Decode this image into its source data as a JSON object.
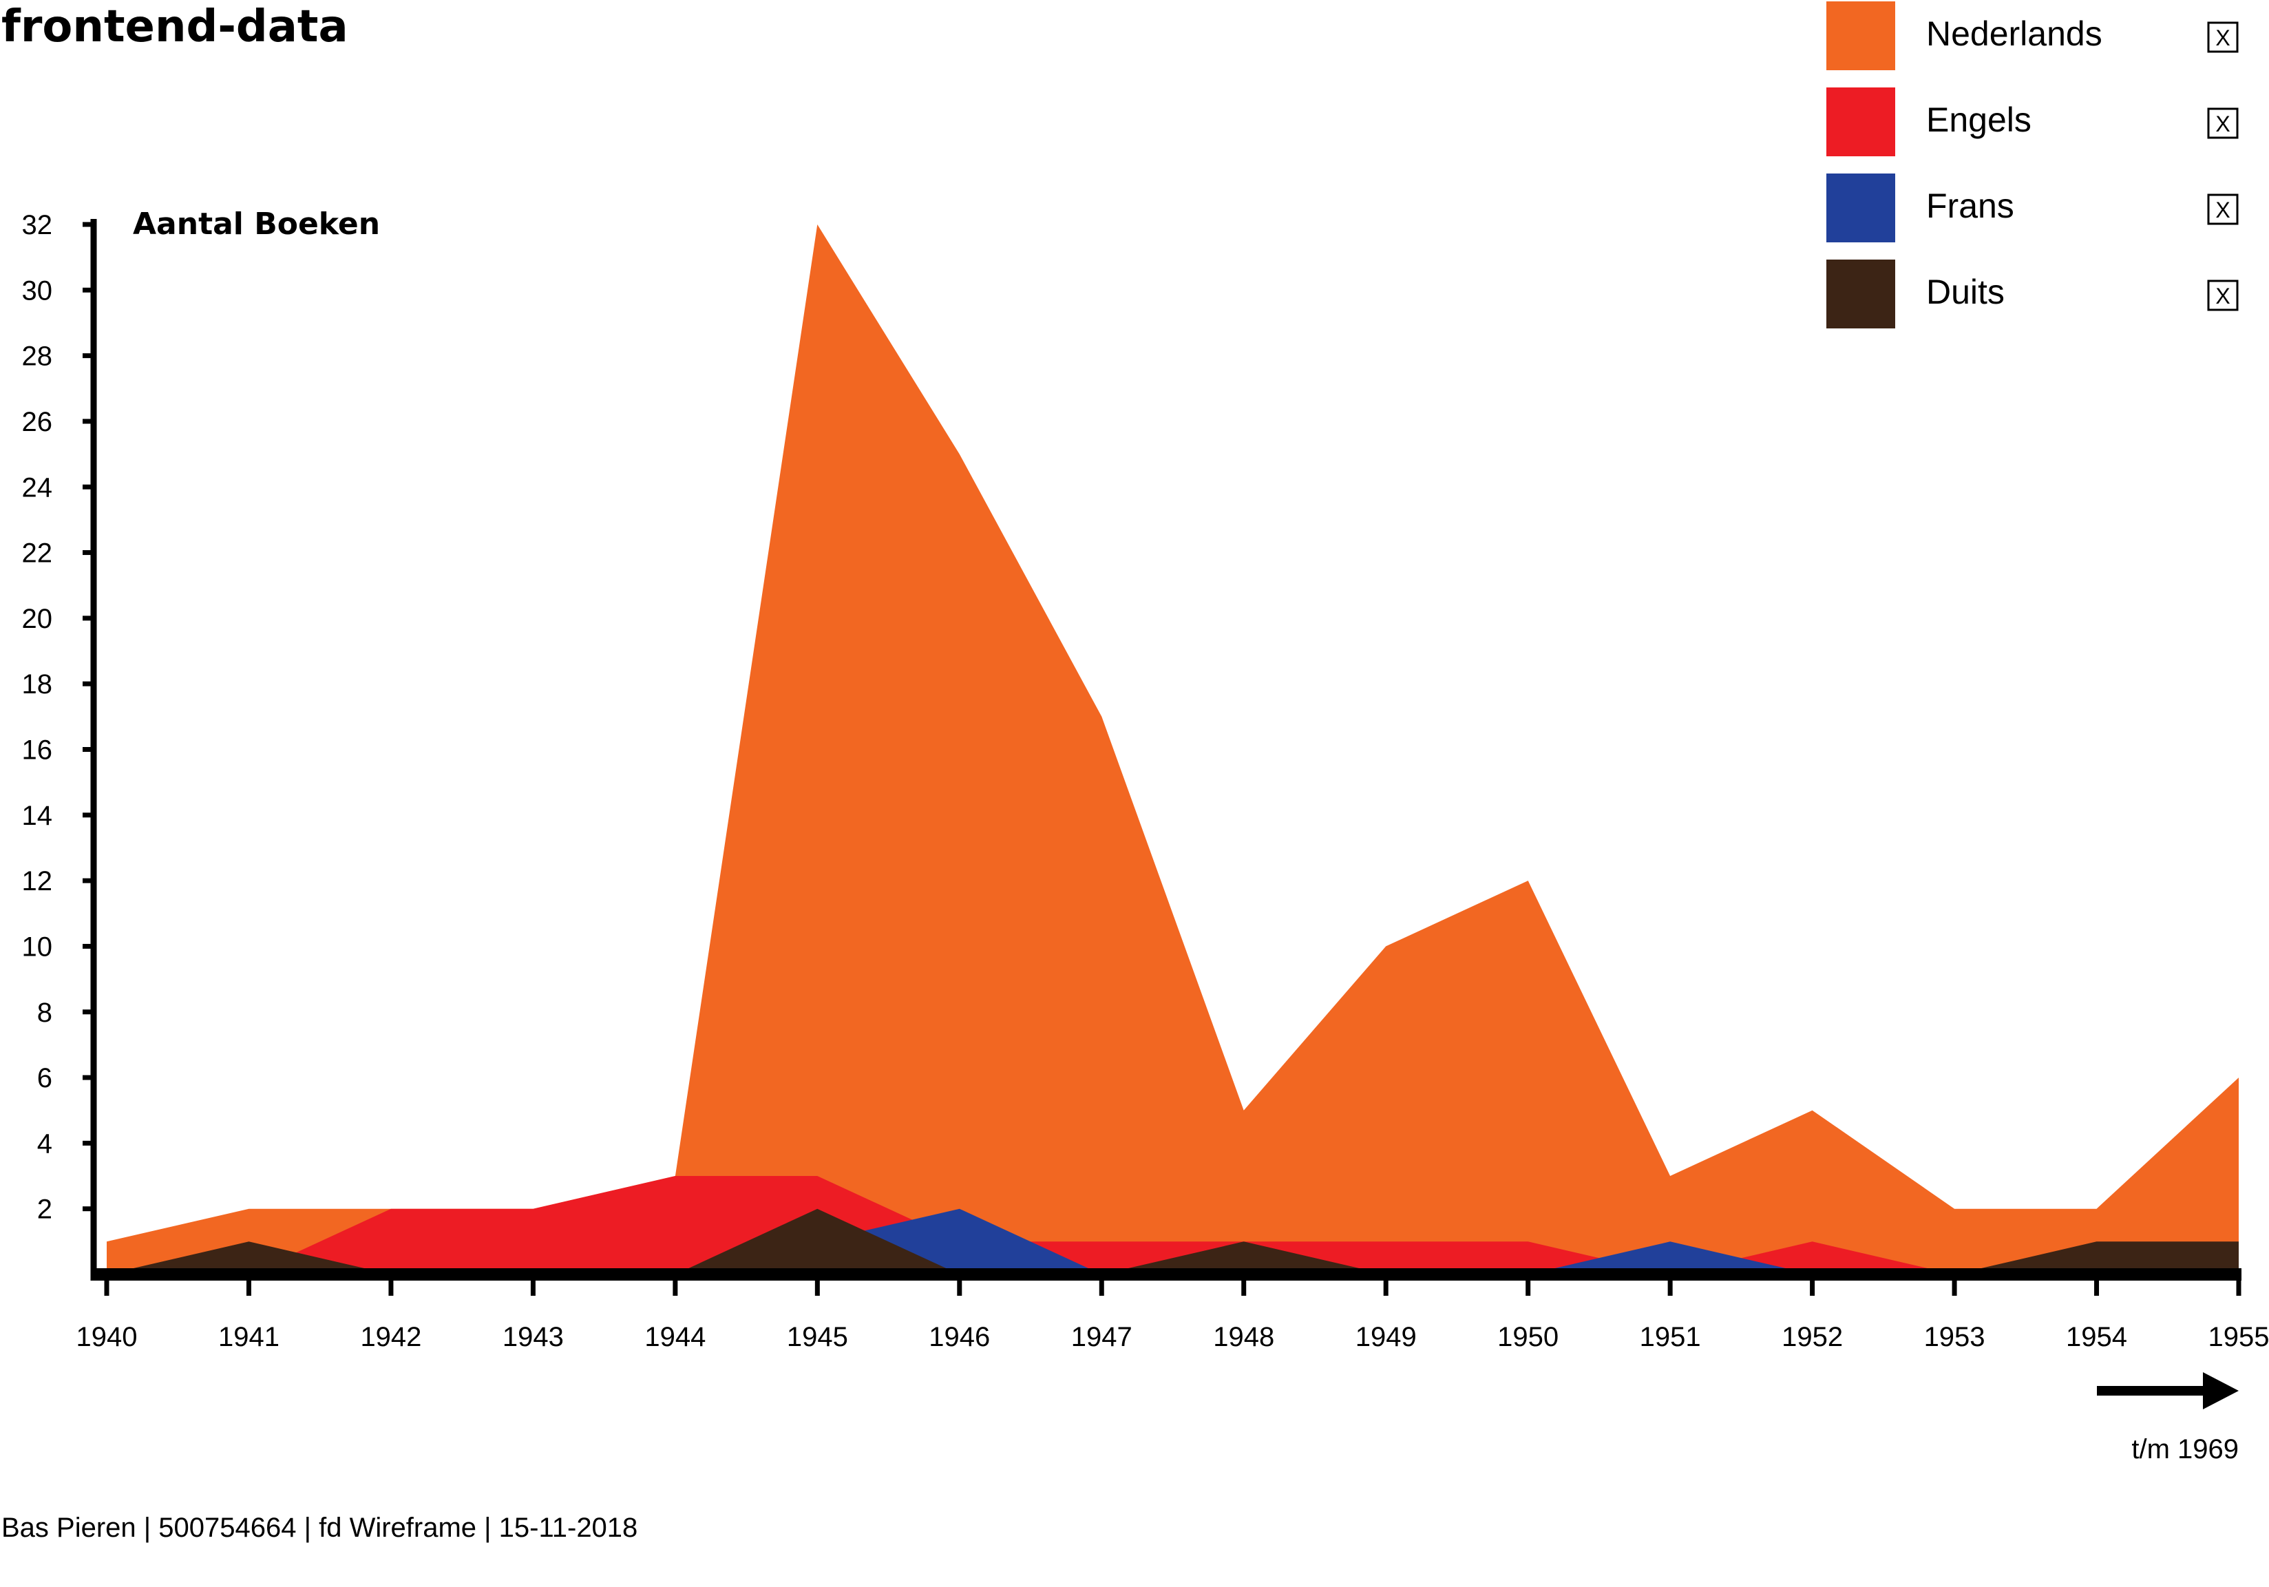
{
  "page_title": "frontend-data",
  "footer": "Bas Pieren | 500754664 | fd Wireframe | 15-11-2018",
  "more_label": "t/m 1969",
  "legend_close_glyph": "X",
  "chart_data": {
    "type": "area",
    "title": "",
    "ylabel": "Aantal Boeken",
    "xlabel": "",
    "x": [
      1940,
      1941,
      1942,
      1943,
      1944,
      1945,
      1946,
      1947,
      1948,
      1949,
      1950,
      1951,
      1952,
      1953,
      1954,
      1955
    ],
    "x_tick_labels": [
      "1940",
      "1941",
      "1942",
      "1943",
      "1944",
      "1945",
      "1946",
      "1947",
      "1948",
      "1949",
      "1950",
      "1951",
      "1952",
      "1953",
      "1954",
      "1955"
    ],
    "y_ticks": [
      2,
      4,
      6,
      8,
      10,
      12,
      14,
      16,
      18,
      20,
      22,
      24,
      26,
      28,
      30,
      32
    ],
    "ylim": [
      0,
      32
    ],
    "grid": false,
    "legend_position": "top-right",
    "series": [
      {
        "name": "Nederlands",
        "color": "#F26722",
        "values": [
          1,
          2,
          2,
          2,
          3,
          32,
          25,
          17,
          5,
          10,
          12,
          3,
          5,
          2,
          2,
          6
        ]
      },
      {
        "name": "Engels",
        "color": "#ED1C24",
        "values": [
          0,
          0,
          2,
          2,
          3,
          3,
          1,
          1,
          1,
          1,
          1,
          0,
          1,
          0,
          0,
          0
        ]
      },
      {
        "name": "Frans",
        "color": "#21409A",
        "values": [
          0,
          0,
          0,
          0,
          0,
          1,
          2,
          0,
          0,
          0,
          0,
          1,
          0,
          0,
          0,
          0
        ]
      },
      {
        "name": "Duits",
        "color": "#3C2415",
        "values": [
          0,
          1,
          0,
          0,
          0,
          2,
          0,
          0,
          1,
          0,
          0,
          0,
          0,
          0,
          1,
          1
        ]
      }
    ]
  }
}
